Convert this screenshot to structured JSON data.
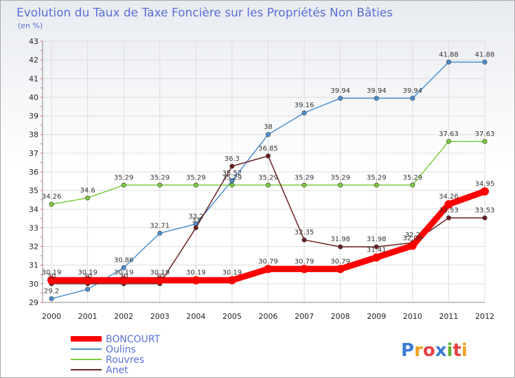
{
  "chart_data": {
    "type": "line",
    "title": "Evolution du Taux de Taxe Foncière sur les Propriétés Non Bâties",
    "subtitle": "(en %)",
    "x": [
      "2000",
      "2001",
      "2002",
      "2003",
      "2004",
      "2005",
      "2006",
      "2007",
      "2008",
      "2009",
      "2010",
      "2011",
      "2012"
    ],
    "ylim": [
      29,
      43
    ],
    "yticks": [
      "29",
      "30",
      "31",
      "32",
      "33",
      "34",
      "35",
      "36",
      "37",
      "38",
      "39",
      "40",
      "41",
      "42",
      "43"
    ],
    "grid": true,
    "series": [
      {
        "name": "BONCOURT",
        "color": "#ff0000",
        "values": [
          30.19,
          30.19,
          30.19,
          30.19,
          30.19,
          30.19,
          30.79,
          30.79,
          30.79,
          31.41,
          32.04,
          34.26,
          34.95
        ],
        "labels": [
          "30.19",
          "30.19",
          "30.19",
          "30.19",
          "30.19",
          "30.19",
          "30.79",
          "30.79",
          "30.79",
          "31.41",
          "32.04",
          "34.26",
          "34.95"
        ]
      },
      {
        "name": "Oulins",
        "color": "#4a90d0",
        "values": [
          29.2,
          29.7,
          30.86,
          32.71,
          33.2,
          35.52,
          38,
          39.16,
          39.94,
          39.94,
          39.94,
          41.88,
          41.88
        ],
        "labels": [
          "29.2",
          "",
          "30.86",
          "32.71",
          "33.2",
          "35.52",
          "38",
          "39.16",
          "39.94",
          "39.94",
          "39.94",
          "41.88",
          "41.88"
        ]
      },
      {
        "name": "Rouvres",
        "color": "#7ccc3c",
        "values": [
          34.26,
          34.6,
          35.29,
          35.29,
          35.29,
          35.29,
          35.29,
          35.29,
          35.29,
          35.29,
          35.29,
          37.63,
          37.63
        ],
        "labels": [
          "34.26",
          "34.6",
          "35.29",
          "35.29",
          "35.29",
          "35.29",
          "35.29",
          "35.29",
          "35.29",
          "35.29",
          "35.29",
          "37.63",
          "37.63"
        ]
      },
      {
        "name": "Anet",
        "color": "#6b1f1f",
        "values": [
          30,
          30,
          30,
          30,
          33,
          36.3,
          36.85,
          32.35,
          31.98,
          31.98,
          32.2,
          33.53,
          33.53
        ],
        "labels": [
          "30",
          "30",
          "30",
          "30",
          "33",
          "36.3",
          "36.85",
          "32.35",
          "31.98",
          "31.98",
          "32.2",
          "33.53",
          "33.53"
        ]
      }
    ],
    "legend_position": "bottom-left"
  },
  "brand": {
    "logo_text": "Proxiti"
  }
}
